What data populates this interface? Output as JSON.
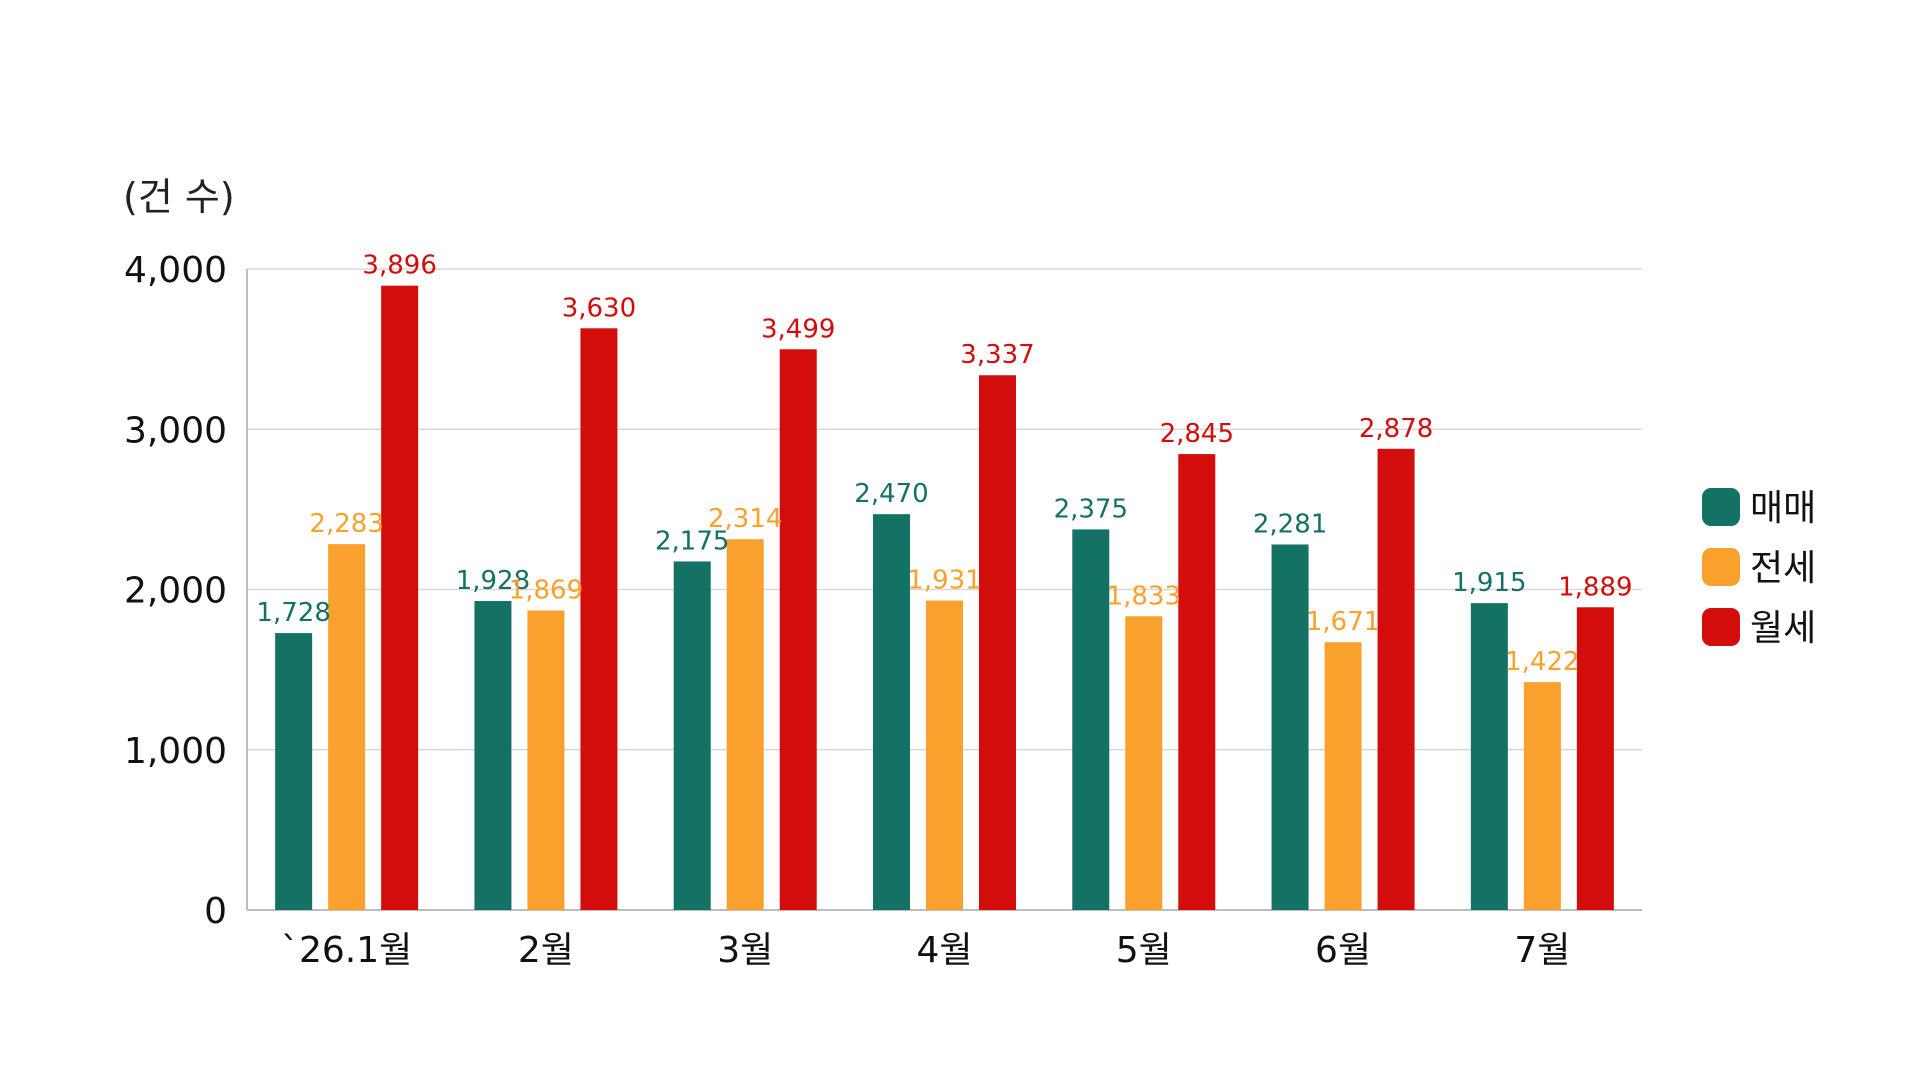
{
  "chart_data": {
    "type": "bar",
    "title": "",
    "xlabel": "",
    "ylabel": "(건 수)",
    "ylim": [
      0,
      4000
    ],
    "yticks": [
      0,
      1000,
      2000,
      3000,
      4000
    ],
    "ytick_labels": [
      "0",
      "1,000",
      "2,000",
      "3,000",
      "4,000"
    ],
    "grid": true,
    "legend_position": "right",
    "categories": [
      "`26.1월",
      "2월",
      "3월",
      "4월",
      "5월",
      "6월",
      "7월"
    ],
    "series": [
      {
        "name": "매매",
        "color": "#137264",
        "values": [
          1728,
          1928,
          2175,
          2470,
          2375,
          2281,
          1915
        ],
        "labels": [
          "1,728",
          "1,928",
          "2,175",
          "2,470",
          "2,375",
          "2,281",
          "1,915"
        ]
      },
      {
        "name": "전세",
        "color": "#F9A12C",
        "values": [
          2283,
          1869,
          2314,
          1931,
          1833,
          1671,
          1422
        ],
        "labels": [
          "2,283",
          "1,869",
          "2,314",
          "1,931",
          "1,833",
          "1,671",
          "1,422"
        ]
      },
      {
        "name": "월세",
        "color": "#D30D0B",
        "values": [
          3896,
          3630,
          3499,
          3337,
          2845,
          2878,
          1889
        ],
        "labels": [
          "3,896",
          "3,630",
          "3,499",
          "3,337",
          "2,845",
          "2,878",
          "1,889"
        ]
      }
    ]
  }
}
